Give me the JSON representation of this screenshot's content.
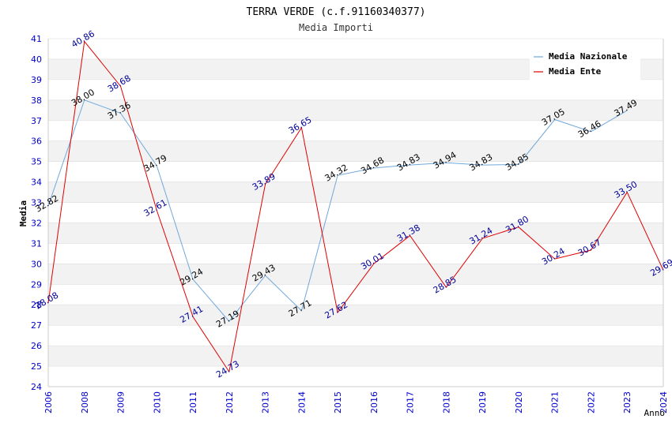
{
  "colors": {
    "nazionale": "#6fa8dc",
    "ente": "#e00000",
    "tick_text": "#0000cc",
    "label_nazionale": "#000000",
    "label_ente": "#000099",
    "band": "#f2f2f2",
    "grid": "#dddddd",
    "axis": "#cccccc"
  },
  "chart_data": {
    "type": "line",
    "title": "TERRA VERDE (c.f.91160340377)",
    "subtitle": "Media Importi",
    "xlabel": "Anno",
    "ylabel": "Media",
    "ylim": [
      24,
      41
    ],
    "yticks": [
      "24",
      "25",
      "26",
      "27",
      "28",
      "29",
      "30",
      "31",
      "32",
      "33",
      "34",
      "35",
      "36",
      "37",
      "38",
      "39",
      "40",
      "41"
    ],
    "xticks": [
      "2006",
      "2008",
      "2009",
      "2010",
      "2011",
      "2012",
      "2013",
      "2014",
      "2015",
      "2016",
      "2017",
      "2018",
      "2019",
      "2020",
      "2021",
      "2022",
      "2023",
      "2024"
    ],
    "legend_position": "top-right",
    "series": [
      {
        "name": "Media Nazionale",
        "key": "nazionale",
        "values": [
          32.82,
          38.0,
          37.36,
          34.79,
          29.24,
          27.19,
          29.43,
          27.71,
          34.32,
          34.68,
          34.83,
          34.94,
          34.83,
          34.85,
          37.05,
          36.46,
          37.49,
          null
        ],
        "labels": [
          "32.82",
          "38.00",
          "37.36",
          "34.79",
          "29.24",
          "27.19",
          "29.43",
          "27.71",
          "34.32",
          "34.68",
          "34.83",
          "34.94",
          "34.83",
          "34.85",
          "37.05",
          "36.46",
          "37.49",
          ""
        ]
      },
      {
        "name": "Media Ente",
        "key": "ente",
        "values": [
          28.08,
          40.86,
          38.68,
          32.61,
          27.41,
          24.73,
          33.89,
          36.65,
          27.62,
          30.01,
          31.38,
          28.85,
          31.24,
          31.8,
          30.24,
          30.67,
          33.5,
          29.69
        ],
        "labels": [
          "28.08",
          "40.86",
          "38.68",
          "32.61",
          "27.41",
          "24.73",
          "33.89",
          "36.65",
          "27.62",
          "30.01",
          "31.38",
          "28.85",
          "31.24",
          "31.80",
          "30.24",
          "30.67",
          "33.50",
          "29.69"
        ]
      }
    ]
  }
}
